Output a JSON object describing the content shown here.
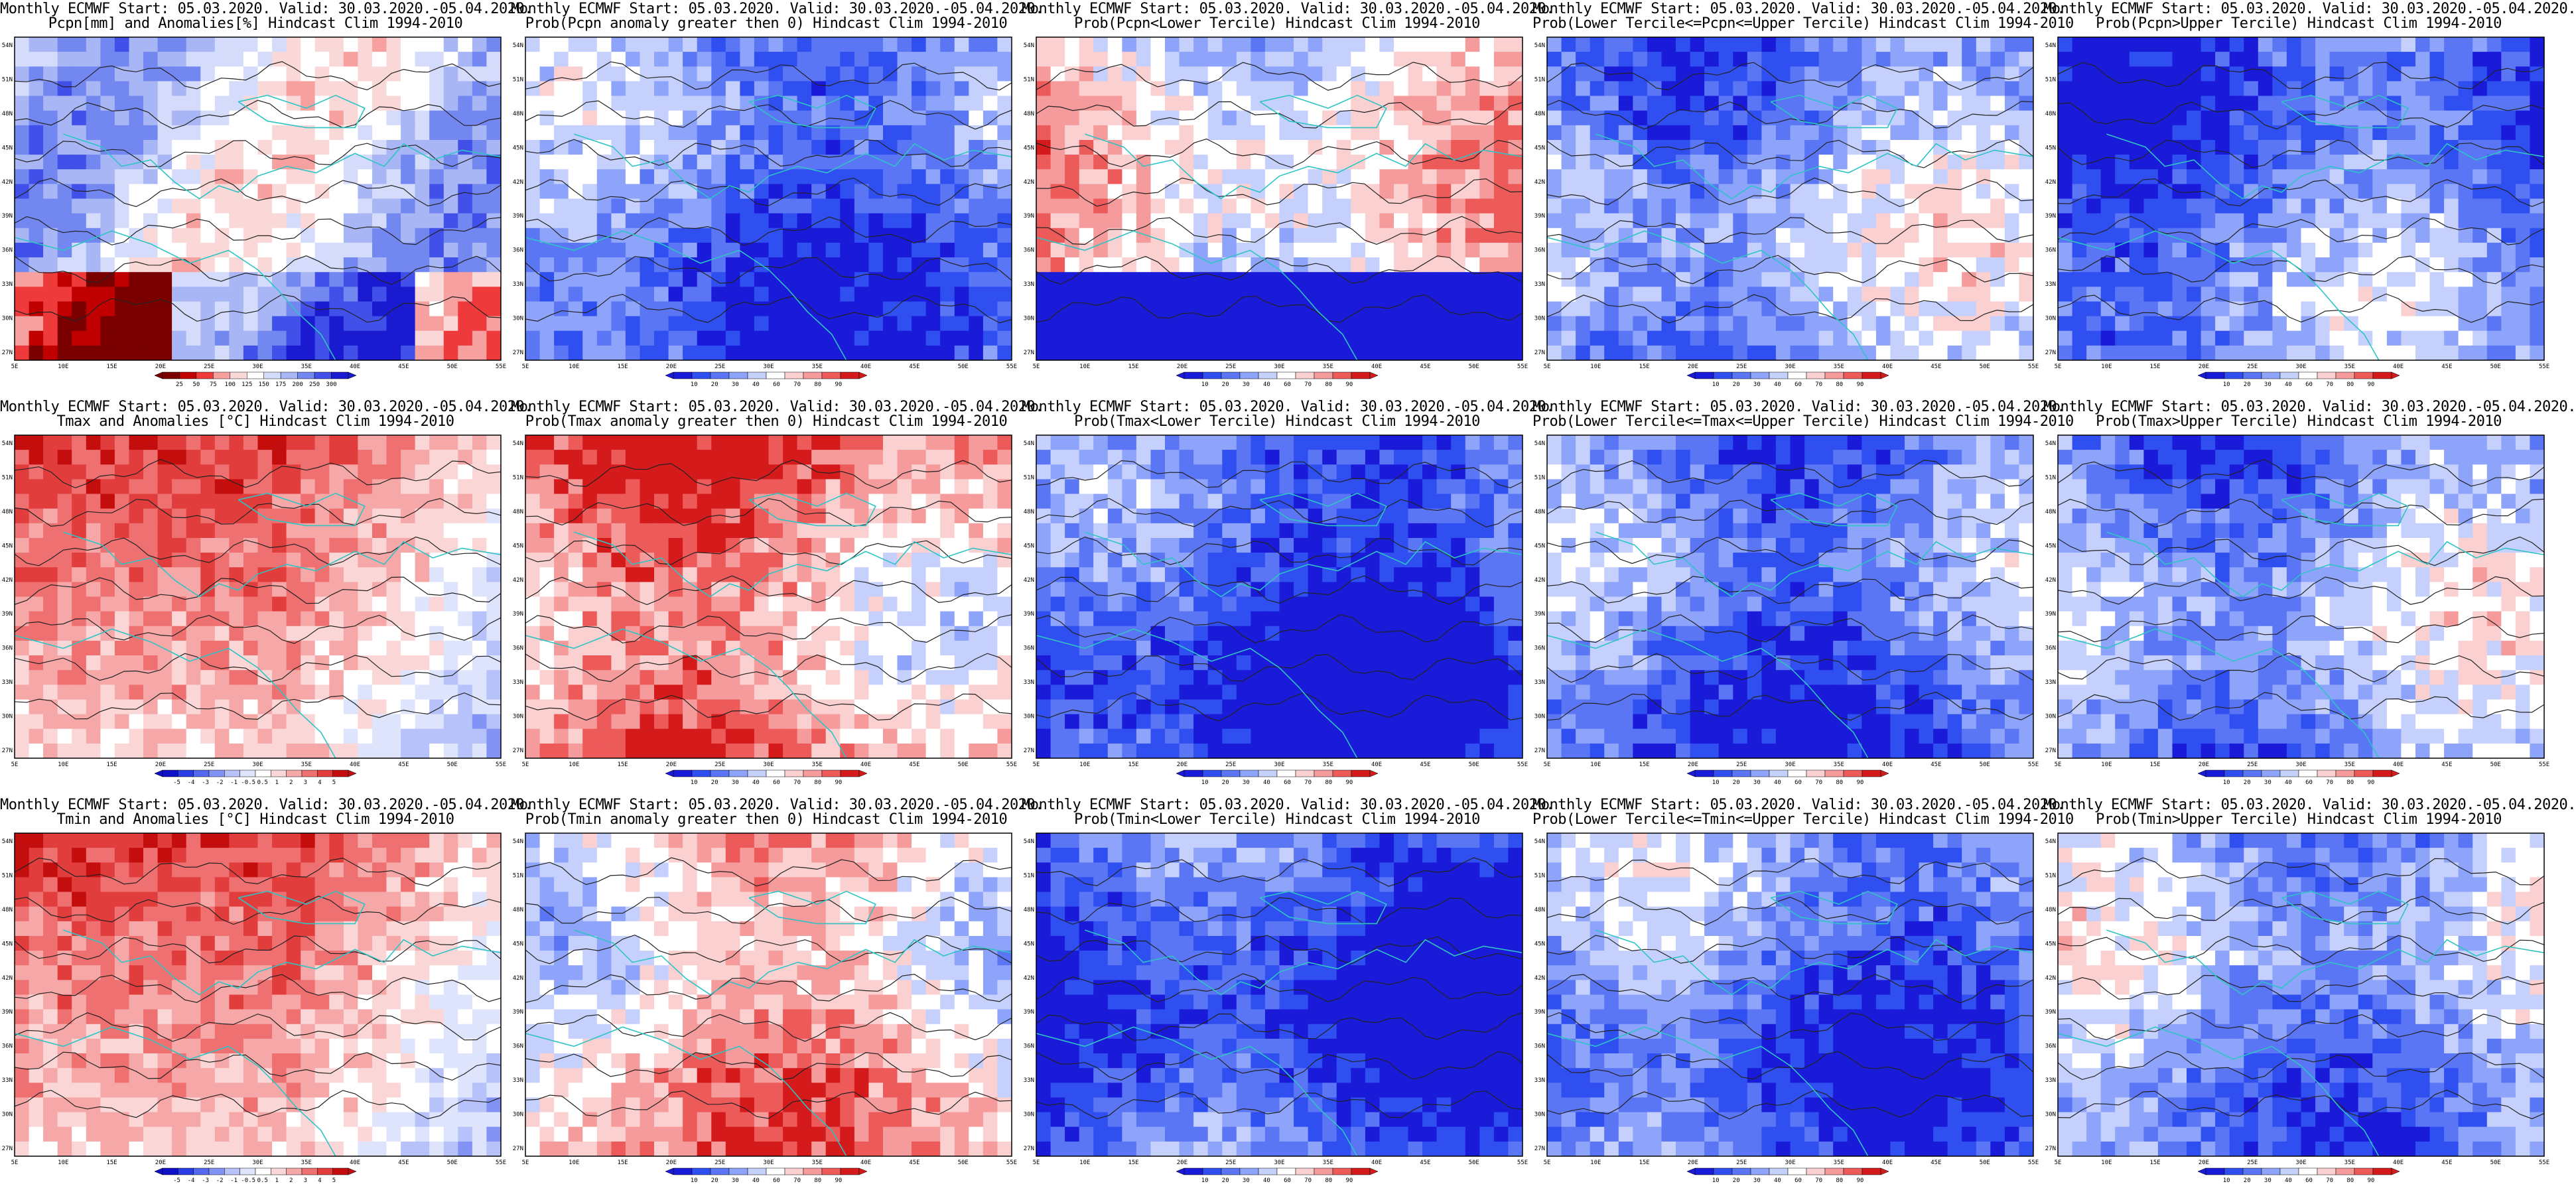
{
  "panels": [
    {
      "row": 0,
      "col": 0,
      "title1": "Monthly ECMWF Start: 05.03.2020. Valid: 30.03.2020.-05.04.2020.",
      "title2": "Pcpn[mm] and Anomalies[%] Hindcast Clim 1994-2010",
      "palette": "anomaly",
      "legend_ticks": [
        "25",
        "50",
        "75",
        "100",
        "125",
        "150",
        "175",
        "200",
        "250",
        "300"
      ]
    },
    {
      "row": 0,
      "col": 1,
      "title1": "Monthly ECMWF Start: 05.03.2020. Valid: 30.03.2020.-05.04.2020.",
      "title2": "Prob(Pcpn anomaly greater then 0) Hindcast Clim 1994-2010",
      "palette": "prob",
      "legend_ticks": [
        "10",
        "20",
        "30",
        "40",
        "60",
        "70",
        "80",
        "90"
      ]
    },
    {
      "row": 0,
      "col": 2,
      "title1": "Monthly ECMWF Start: 05.03.2020. Valid: 30.03.2020.-05.04.2020.",
      "title2": "Prob(Pcpn<Lower Tercile) Hindcast Clim 1994-2010",
      "palette": "prob",
      "legend_ticks": [
        "10",
        "20",
        "30",
        "40",
        "60",
        "70",
        "80",
        "90"
      ]
    },
    {
      "row": 0,
      "col": 3,
      "title1": "Monthly ECMWF Start: 05.03.2020. Valid: 30.03.2020.-05.04.2020.",
      "title2": "Prob(Lower Tercile<=Pcpn<=Upper Tercile) Hindcast Clim 1994-2010",
      "palette": "prob",
      "legend_ticks": [
        "10",
        "20",
        "30",
        "40",
        "60",
        "70",
        "80",
        "90"
      ]
    },
    {
      "row": 0,
      "col": 4,
      "title1": "Monthly ECMWF Start: 05.03.2020. Valid: 30.03.2020.-05.04.2020.",
      "title2": "Prob(Pcpn>Upper Tercile) Hindcast Clim 1994-2010",
      "palette": "prob",
      "legend_ticks": [
        "10",
        "20",
        "30",
        "40",
        "60",
        "70",
        "80",
        "90"
      ]
    },
    {
      "row": 1,
      "col": 0,
      "title1": "Monthly ECMWF Start: 05.03.2020. Valid: 30.03.2020.-05.04.2020.",
      "title2": "Tmax and Anomalies [°C] Hindcast Clim 1994-2010",
      "palette": "temp",
      "legend_ticks": [
        "-5",
        "-4",
        "-3",
        "-2",
        "-1",
        "-0.5",
        "0.5",
        "1",
        "2",
        "3",
        "4",
        "5"
      ]
    },
    {
      "row": 1,
      "col": 1,
      "title1": "Monthly ECMWF Start: 05.03.2020. Valid: 30.03.2020.-05.04.2020.",
      "title2": "Prob(Tmax anomaly greater then 0) Hindcast Clim 1994-2010",
      "palette": "prob",
      "legend_ticks": [
        "10",
        "20",
        "30",
        "40",
        "60",
        "70",
        "80",
        "90"
      ]
    },
    {
      "row": 1,
      "col": 2,
      "title1": "Monthly ECMWF Start: 05.03.2020. Valid: 30.03.2020.-05.04.2020.",
      "title2": "Prob(Tmax<Lower Tercile) Hindcast Clim 1994-2010",
      "palette": "prob",
      "legend_ticks": [
        "10",
        "20",
        "30",
        "40",
        "60",
        "70",
        "80",
        "90"
      ]
    },
    {
      "row": 1,
      "col": 3,
      "title1": "Monthly ECMWF Start: 05.03.2020. Valid: 30.03.2020.-05.04.2020.",
      "title2": "Prob(Lower Tercile<=Tmax<=Upper Tercile) Hindcast Clim 1994-2010",
      "palette": "prob",
      "legend_ticks": [
        "10",
        "20",
        "30",
        "40",
        "60",
        "70",
        "80",
        "90"
      ]
    },
    {
      "row": 1,
      "col": 4,
      "title1": "Monthly ECMWF Start: 05.03.2020. Valid: 30.03.2020.-05.04.2020.",
      "title2": "Prob(Tmax>Upper Tercile) Hindcast Clim 1994-2010",
      "palette": "prob",
      "legend_ticks": [
        "10",
        "20",
        "30",
        "40",
        "60",
        "70",
        "80",
        "90"
      ]
    },
    {
      "row": 2,
      "col": 0,
      "title1": "Monthly ECMWF Start: 05.03.2020. Valid: 30.03.2020.-05.04.2020.",
      "title2": "Tmin and Anomalies [°C] Hindcast Clim 1994-2010",
      "palette": "temp",
      "legend_ticks": [
        "-5",
        "-4",
        "-3",
        "-2",
        "-1",
        "-0.5",
        "0.5",
        "1",
        "2",
        "3",
        "4",
        "5"
      ]
    },
    {
      "row": 2,
      "col": 1,
      "title1": "Monthly ECMWF Start: 05.03.2020. Valid: 30.03.2020.-05.04.2020.",
      "title2": "Prob(Tmin anomaly greater then 0) Hindcast Clim 1994-2010",
      "palette": "prob",
      "legend_ticks": [
        "10",
        "20",
        "30",
        "40",
        "60",
        "70",
        "80",
        "90"
      ]
    },
    {
      "row": 2,
      "col": 2,
      "title1": "Monthly ECMWF Start: 05.03.2020. Valid: 30.03.2020.-05.04.2020.",
      "title2": "Prob(Tmin<Lower Tercile) Hindcast Clim 1994-2010",
      "palette": "prob",
      "legend_ticks": [
        "10",
        "20",
        "30",
        "40",
        "60",
        "70",
        "80",
        "90"
      ]
    },
    {
      "row": 2,
      "col": 3,
      "title1": "Monthly ECMWF Start: 05.03.2020. Valid: 30.03.2020.-05.04.2020.",
      "title2": "Prob(Lower Tercile<=Tmin<=Upper Tercile) Hindcast Clim 1994-2010",
      "palette": "prob",
      "legend_ticks": [
        "10",
        "20",
        "30",
        "40",
        "60",
        "70",
        "80",
        "90"
      ]
    },
    {
      "row": 2,
      "col": 4,
      "title1": "Monthly ECMWF Start: 05.03.2020. Valid: 30.03.2020.-05.04.2020.",
      "title2": "Prob(Tmin>Upper Tercile) Hindcast Clim 1994-2010",
      "palette": "prob",
      "legend_ticks": [
        "10",
        "20",
        "30",
        "40",
        "60",
        "70",
        "80",
        "90"
      ]
    }
  ],
  "lat_labels": [
    "54N",
    "51N",
    "48N",
    "45N",
    "42N",
    "39N",
    "36N",
    "33N",
    "30N",
    "27N"
  ],
  "lon_labels": [
    "5E",
    "10E",
    "15E",
    "20E",
    "25E",
    "30E",
    "35E",
    "40E",
    "45E",
    "50E",
    "55E"
  ],
  "colors": {
    "frame": "#000000",
    "coast": "#2ec4c4",
    "contour": "#222222",
    "prob_palette": [
      "#1a1ad9",
      "#2f4ff0",
      "#5b76f5",
      "#8ea3fa",
      "#c6d0fd",
      "#ffffff",
      "#fbd0d0",
      "#f59b9b",
      "#ec5a5a",
      "#d41a1a"
    ],
    "temp_palette": [
      "#1010c8",
      "#2a3ee6",
      "#5568f0",
      "#8292f5",
      "#b7c2fb",
      "#dfe4fd",
      "#ffffff",
      "#fbd6d6",
      "#f6a8a8",
      "#ee7070",
      "#e23d3d",
      "#c40d0d"
    ],
    "anomaly_palette": [
      "#7a0000",
      "#c00000",
      "#ee3a3a",
      "#f7a0a0",
      "#fbd8d8",
      "#ffffff",
      "#d5dcfb",
      "#a9b6f6",
      "#7387f1",
      "#4050e8",
      "#1a1ad0"
    ]
  }
}
